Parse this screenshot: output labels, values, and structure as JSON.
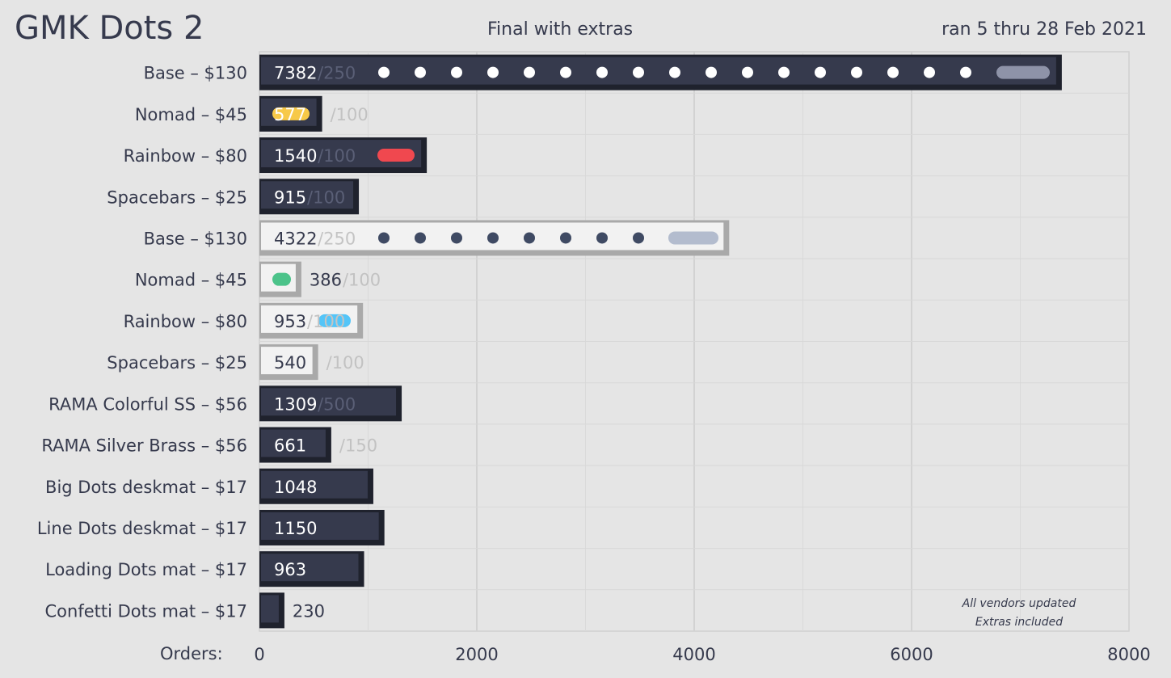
{
  "header": {
    "title": "GMK Dots 2",
    "subtitle": "Final with extras",
    "date_range": "ran 5 thru 28 Feb 2021"
  },
  "chart_data": {
    "type": "bar",
    "orientation": "horizontal",
    "xlabel": "Orders:",
    "xlim": [
      0,
      8000
    ],
    "xticks": [
      0,
      2000,
      4000,
      6000,
      8000
    ],
    "grid": true,
    "categories": [
      "Base – $130",
      "Nomad – $45",
      "Rainbow – $80",
      "Spacebars – $25",
      "Base – $130",
      "Nomad – $45",
      "Rainbow – $80",
      "Spacebars – $25",
      "RAMA Colorful SS – $56",
      "RAMA Silver Brass – $56",
      "Big Dots deskmat – $17",
      "Line Dots deskmat – $17",
      "Loading Dots mat – $17",
      "Confetti Dots mat – $17"
    ],
    "values": [
      7382,
      577,
      1540,
      915,
      4322,
      386,
      953,
      540,
      1309,
      661,
      1048,
      1150,
      963,
      230
    ],
    "targets": [
      "/250",
      "/100",
      "/100",
      "/100",
      "/250",
      "/100",
      "/100",
      "/100",
      "/500",
      "/150",
      "",
      "",
      "",
      ""
    ],
    "styles": [
      "dark",
      "dark",
      "dark",
      "dark",
      "light",
      "light",
      "light",
      "light",
      "dark",
      "dark",
      "dark",
      "dark",
      "dark",
      "dark"
    ],
    "colors": {
      "dark_face": "#363a4d",
      "dark_edge": "#1f222d",
      "light_face": "#f2f2f2",
      "light_edge": "#a9a9a9",
      "nomad_dark_pill": "#f7c948",
      "rainbow_dark_pill": "#f0484f",
      "base_dark_pill": "#8e93a8",
      "base_light_pill": "#b3bcce",
      "nomad_light_pill": "#4cc38a",
      "rainbow_light_pill": "#54c5f8"
    },
    "annotation": [
      "All vendors updated",
      "Extras included"
    ]
  }
}
